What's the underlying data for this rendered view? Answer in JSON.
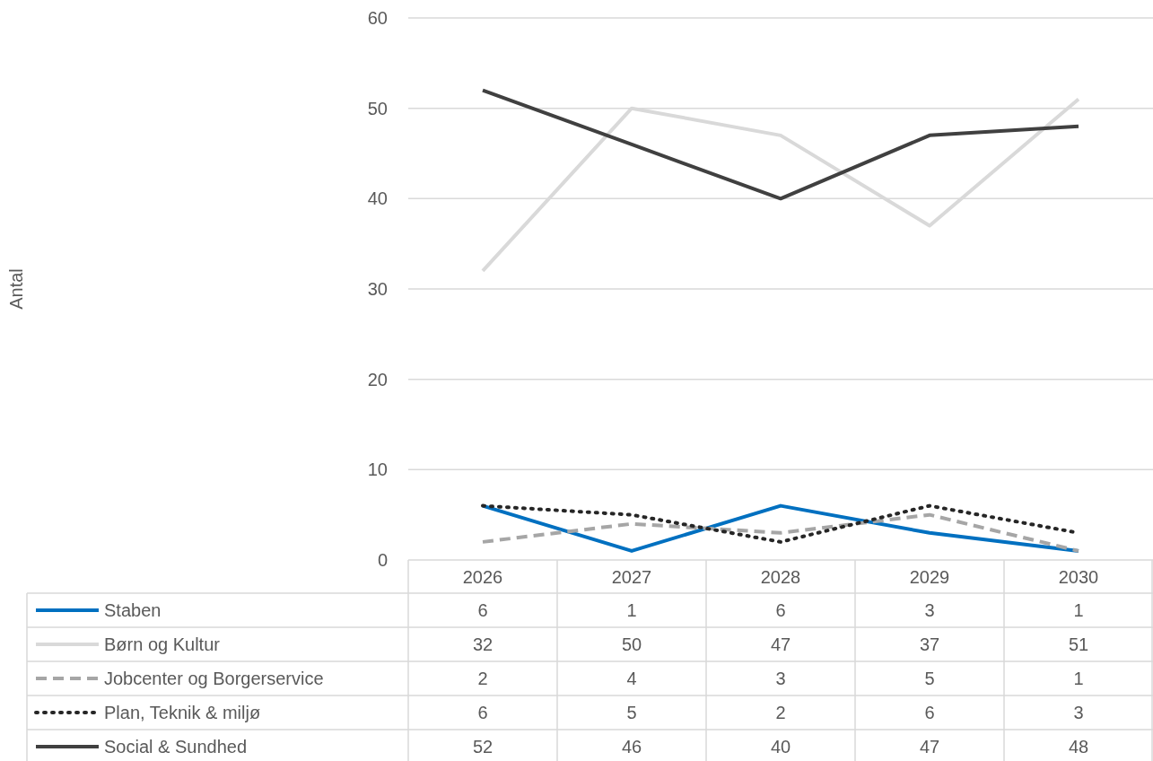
{
  "chart_data": {
    "type": "line",
    "annotations": [
      "Antal"
    ],
    "categories": [
      "2026",
      "2027",
      "2028",
      "2029",
      "2030"
    ],
    "ylim": [
      0,
      60
    ],
    "yticks": [
      0,
      10,
      20,
      30,
      40,
      50,
      60
    ],
    "grid": "y",
    "legend": "bottom",
    "data_labels": true,
    "series": [
      {
        "name": "Staben",
        "color": "#0070c0",
        "line_style": "solid",
        "values": [
          6,
          1,
          6,
          3,
          1
        ]
      },
      {
        "name": "Børn og Kultur",
        "color": "#d9d9d9",
        "line_style": "solid",
        "values": [
          32,
          50,
          47,
          37,
          51
        ]
      },
      {
        "name": "Jobcenter og Borgerservice",
        "color": "#a6a6a6",
        "line_style": "dashed",
        "values": [
          2,
          4,
          3,
          5,
          1
        ]
      },
      {
        "name": "Plan, Teknik & miljø",
        "color": "#262626",
        "line_style": "dotted",
        "values": [
          6,
          5,
          2,
          6,
          3
        ]
      },
      {
        "name": "Social & Sundhed",
        "color": "#404040",
        "line_style": "solid",
        "values": [
          52,
          46,
          40,
          47,
          48
        ]
      }
    ]
  }
}
